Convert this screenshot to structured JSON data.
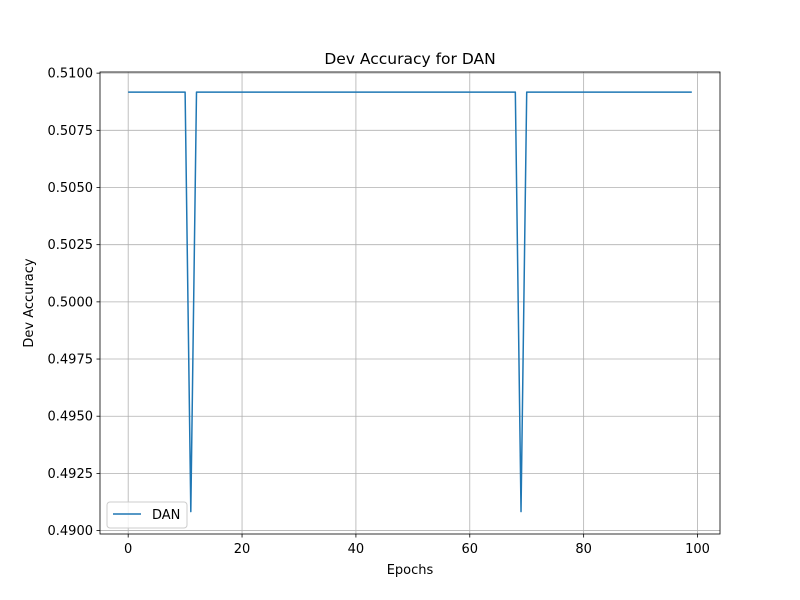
{
  "chart_data": {
    "type": "line",
    "title": "Dev Accuracy for DAN",
    "xlabel": "Epochs",
    "ylabel": "Dev Accuracy",
    "xlim": [
      -4.95,
      103.95
    ],
    "ylim": [
      0.48985,
      0.51005
    ],
    "xticks": [
      0,
      20,
      40,
      60,
      80,
      100
    ],
    "xtick_labels": [
      "0",
      "20",
      "40",
      "60",
      "80",
      "100"
    ],
    "yticks": [
      0.49,
      0.4925,
      0.495,
      0.4975,
      0.5,
      0.5025,
      0.505,
      0.5075,
      0.51
    ],
    "ytick_labels": [
      "0.4900",
      "0.4925",
      "0.4950",
      "0.4975",
      "0.5000",
      "0.5025",
      "0.5050",
      "0.5075",
      "0.5100"
    ],
    "grid": true,
    "legend_position": "lower-left",
    "series": [
      {
        "name": "DAN",
        "color": "#1f77b4",
        "x": [
          0,
          10,
          11,
          12,
          68,
          69,
          70,
          99
        ],
        "y": [
          0.50917,
          0.50917,
          0.49083,
          0.50917,
          0.50917,
          0.49083,
          0.50917,
          0.50917
        ]
      }
    ]
  }
}
